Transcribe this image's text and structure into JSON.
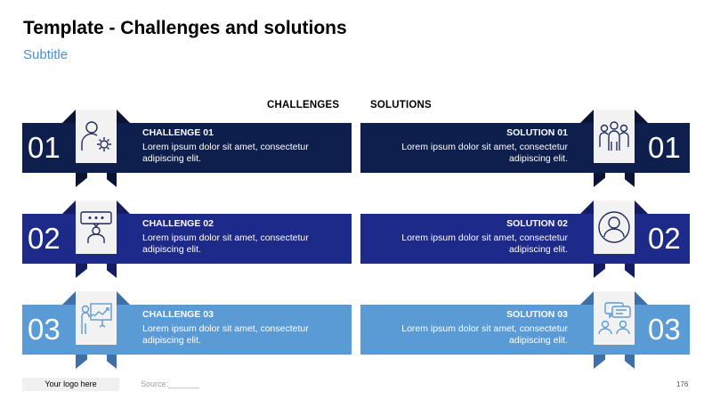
{
  "title": "Template - Challenges and solutions",
  "subtitle": "Subtitle",
  "headers": {
    "challenges": "CHALLENGES",
    "solutions": "SOLUTIONS"
  },
  "rows": [
    {
      "number": "01",
      "color": "#0f1f4d",
      "shade": "#0a1535",
      "challenge_title": "CHALLENGE 01",
      "challenge_body": "Lorem ipsum dolor sit amet, consectetur adipiscing elit.",
      "solution_title": "SOLUTION 01",
      "solution_body": "Lorem ipsum dolor sit amet, consectetur adipiscing elit.",
      "left_icon": "person-gear-icon",
      "right_icon": "team-icon"
    },
    {
      "number": "02",
      "color": "#1e2a8a",
      "shade": "#141d63",
      "challenge_title": "CHALLENGE 02",
      "challenge_body": "Lorem ipsum dolor sit amet, consectetur adipiscing elit.",
      "solution_title": "SOLUTION 02",
      "solution_body": "Lorem ipsum dolor sit amet, consectetur adipiscing elit.",
      "left_icon": "person-speech-bubble-icon",
      "right_icon": "user-circle-icon"
    },
    {
      "number": "03",
      "color": "#5b9bd5",
      "shade": "#3f6fa8",
      "challenge_title": "CHALLENGE 03",
      "challenge_body": "Lorem ipsum dolor sit amet, consectetur adipiscing elit.",
      "solution_title": "SOLUTION 03",
      "solution_body": "Lorem ipsum dolor sit amet, consectetur adipiscing elit.",
      "left_icon": "presentation-icon",
      "right_icon": "conversation-icon"
    }
  ],
  "footer": {
    "logo": "Your logo here",
    "source": "Source:_______",
    "page": "176"
  }
}
